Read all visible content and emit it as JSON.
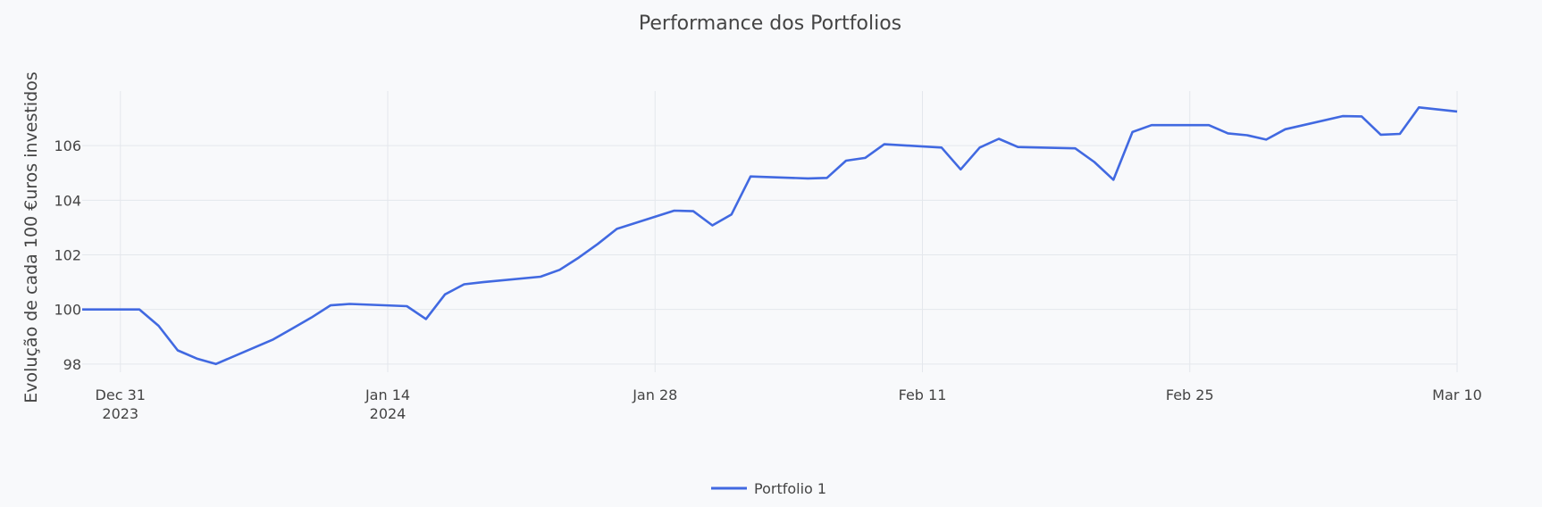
{
  "chart_data": {
    "type": "line",
    "title": "Performance dos Portfolios",
    "xlabel": "",
    "ylabel": "Evolução de cada 100 €uros investidos",
    "x_tick_labels": [
      {
        "date": "2023-12-31",
        "line1": "Dec 31",
        "line2": "2023"
      },
      {
        "date": "2024-01-14",
        "line1": "Jan 14",
        "line2": "2024"
      },
      {
        "date": "2024-01-28",
        "line1": "Jan 28",
        "line2": ""
      },
      {
        "date": "2024-02-11",
        "line1": "Feb 11",
        "line2": ""
      },
      {
        "date": "2024-02-25",
        "line1": "Feb 25",
        "line2": ""
      },
      {
        "date": "2024-03-10",
        "line1": "Mar 10",
        "line2": ""
      }
    ],
    "y_ticks": [
      98,
      100,
      102,
      104,
      106
    ],
    "xlim": [
      "2023-12-29",
      "2024-03-10"
    ],
    "ylim": [
      97.7,
      108.0
    ],
    "grid": true,
    "legend_position": "bottom-center",
    "series": [
      {
        "name": "Portfolio 1",
        "color": "#4169e1",
        "x": [
          "2023-12-29",
          "2024-01-01",
          "2024-01-02",
          "2024-01-03",
          "2024-01-04",
          "2024-01-05",
          "2024-01-08",
          "2024-01-09",
          "2024-01-10",
          "2024-01-11",
          "2024-01-12",
          "2024-01-15",
          "2024-01-16",
          "2024-01-17",
          "2024-01-18",
          "2024-01-19",
          "2024-01-22",
          "2024-01-23",
          "2024-01-24",
          "2024-01-25",
          "2024-01-26",
          "2024-01-29",
          "2024-01-30",
          "2024-01-31",
          "2024-02-01",
          "2024-02-02",
          "2024-02-05",
          "2024-02-06",
          "2024-02-07",
          "2024-02-08",
          "2024-02-09",
          "2024-02-12",
          "2024-02-13",
          "2024-02-14",
          "2024-02-15",
          "2024-02-16",
          "2024-02-19",
          "2024-02-20",
          "2024-02-21",
          "2024-02-22",
          "2024-02-23",
          "2024-02-26",
          "2024-02-27",
          "2024-02-28",
          "2024-02-29",
          "2024-03-01",
          "2024-03-04",
          "2024-03-05",
          "2024-03-06",
          "2024-03-07",
          "2024-03-08",
          "2024-03-10"
        ],
        "values": [
          100.0,
          100.0,
          99.4,
          98.5,
          98.2,
          98.0,
          98.9,
          99.3,
          99.7,
          100.15,
          100.2,
          100.12,
          99.65,
          100.55,
          100.92,
          101.0,
          101.2,
          101.45,
          101.9,
          102.4,
          102.95,
          103.62,
          103.6,
          103.08,
          103.48,
          104.87,
          104.8,
          104.82,
          105.45,
          105.55,
          106.05,
          105.93,
          105.13,
          105.93,
          106.25,
          105.95,
          105.9,
          105.4,
          104.75,
          106.5,
          106.75,
          106.75,
          106.45,
          106.38,
          106.22,
          106.6,
          107.08,
          107.07,
          106.4,
          106.43,
          107.4,
          107.25
        ]
      }
    ]
  }
}
